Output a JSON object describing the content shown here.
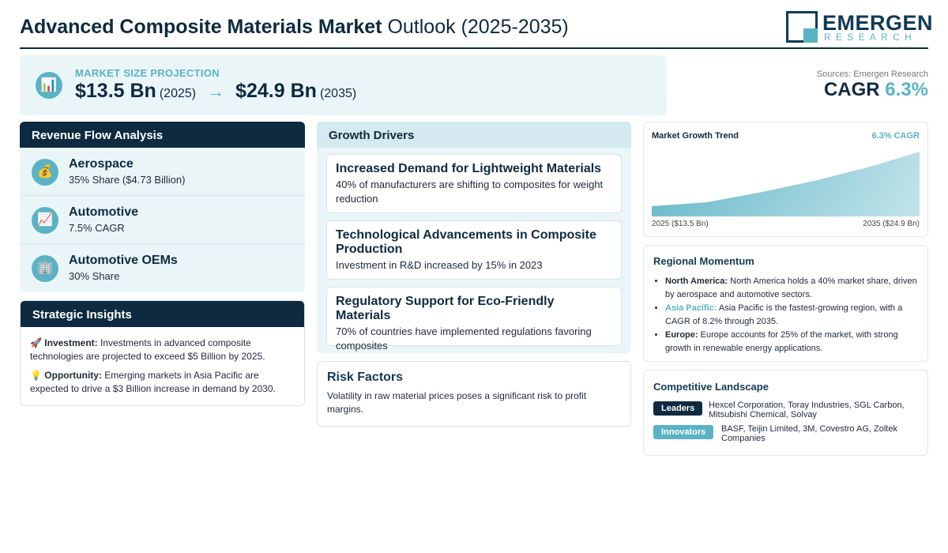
{
  "header": {
    "title_bold": "Advanced Composite Materials Market",
    "title_light": "Outlook (2025-2035)",
    "logo_main": "EMERGEN",
    "logo_sub": "RESEARCH"
  },
  "projection": {
    "label": "MARKET SIZE PROJECTION",
    "icon": "bar-chart-icon",
    "start_value": "$13.5 Bn",
    "start_year": "(2025)",
    "arrow": "→",
    "end_value": "$24.9 Bn",
    "end_year": "(2035)"
  },
  "sources": "Sources: Emergen Research",
  "cagr": {
    "label": "CAGR",
    "value": "6.3%"
  },
  "revenue": {
    "title": "Revenue Flow Analysis",
    "items": [
      {
        "icon": "money-bag-icon",
        "glyph": "💰",
        "name": "Aerospace",
        "sub": "35% Share ($4.73 Billion)"
      },
      {
        "icon": "trend-chart-icon",
        "glyph": "📈",
        "name": "Automotive",
        "sub": "7.5% CAGR"
      },
      {
        "icon": "building-icon",
        "glyph": "🏢",
        "name": "Automotive OEMs",
        "sub": "30% Share"
      }
    ]
  },
  "strategic": {
    "title": "Strategic Insights",
    "items": [
      {
        "glyph": "🚀",
        "label": "Investment:",
        "text": "Investments in advanced composite technologies are projected to exceed $5 Billion by 2025."
      },
      {
        "glyph": "💡",
        "label": "Opportunity:",
        "text": "Emerging markets in Asia Pacific are expected to drive a $3 Billion increase in demand by 2030."
      }
    ]
  },
  "drivers": {
    "title": "Growth Drivers",
    "items": [
      {
        "title": "Increased Demand for Lightweight Materials",
        "desc": "40% of manufacturers are shifting to composites for weight reduction"
      },
      {
        "title": "Technological Advancements in Composite Production",
        "desc": "Investment in R&D increased by 15% in 2023"
      },
      {
        "title": "Regulatory Support for Eco-Friendly Materials",
        "desc": "70% of countries have implemented regulations favoring composites"
      }
    ]
  },
  "risk": {
    "title": "Risk Factors",
    "desc": "Volatility in raw material prices poses a significant risk to profit margins."
  },
  "trend": {
    "title": "Market Growth Trend",
    "cagr_label": "6.3% CAGR",
    "start_label": "2025 ($13.5 Bn)",
    "end_label": "2035 ($24.9 Bn)"
  },
  "regional": {
    "title": "Regional Momentum",
    "items": [
      {
        "region": "North America:",
        "text": "North America holds a 40% market share, driven by aerospace and automotive sectors."
      },
      {
        "region": "Asia Pacific:",
        "text": "Asia Pacific is the fastest-growing region, with a CAGR of 8.2% through 2035."
      },
      {
        "region": "Europe:",
        "text": "Europe accounts for 25% of the market, with strong growth in renewable energy applications."
      }
    ]
  },
  "competitive": {
    "title": "Competitive Landscape",
    "leaders_label": "Leaders",
    "leaders": "Hexcel Corporation, Toray Industries, SGL Carbon, Mitsubishi Chemical, Solvay",
    "innovators_label": "Innovators",
    "innovators": "BASF, Teijin Limited, 3M, Covestro AG, Zoltek Companies"
  },
  "colors": {
    "navy": "#0e2a40",
    "accent": "#5ab3c4",
    "panel": "#eaf5f8"
  }
}
